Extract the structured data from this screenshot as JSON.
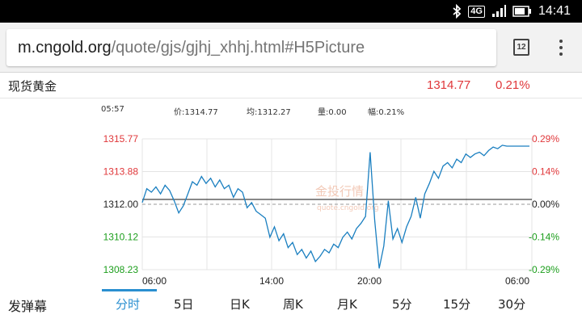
{
  "status_bar": {
    "network": "4G",
    "time": "14:41",
    "icons": [
      "bluetooth-icon",
      "signal-icon",
      "battery-icon"
    ]
  },
  "browser": {
    "url_host": "m.cngold.org",
    "url_path": "/quote/gjs/gjhj_xhhj.html#H5Picture",
    "tab_count": "12"
  },
  "quote": {
    "name": "现货黄金",
    "price": "1314.77",
    "change": "0.21%"
  },
  "info": {
    "time": "05:57",
    "price_label": "价:1314.77",
    "avg_label": "均:1312.27",
    "volume_label": "量:0.00",
    "range_label": "幅:0.21%"
  },
  "colors": {
    "up": "#e0373a",
    "down": "#1c9e1c",
    "line": "#1a7fc0",
    "accent": "#2a8fd0"
  },
  "chart_data": {
    "type": "line",
    "title": "",
    "y_left_ticks": [
      "1315.77",
      "1313.88",
      "1312.00",
      "1310.12",
      "1308.23"
    ],
    "y_right_ticks": [
      "0.29%",
      "0.14%",
      "0.00%",
      "-0.14%",
      "-0.29%"
    ],
    "x_ticks": [
      "06:00",
      "14:00",
      "20:00",
      "06:00"
    ],
    "ylim": [
      1308.23,
      1315.77
    ],
    "reference": 1312.0,
    "grid": true,
    "watermark": "金投行情 quote.cngold.org",
    "series": [
      {
        "values": [
          1312.1,
          1312.9,
          1312.7,
          1313.0,
          1312.6,
          1313.1,
          1312.8,
          1312.2,
          1311.5,
          1311.9,
          1312.6,
          1313.3,
          1313.1,
          1313.6,
          1313.2,
          1313.5,
          1313.0,
          1313.4,
          1312.9,
          1313.1,
          1312.4,
          1312.9,
          1312.7,
          1311.8,
          1312.1,
          1311.6,
          1311.4,
          1311.2,
          1310.1,
          1310.7,
          1309.9,
          1310.3,
          1309.5,
          1309.8,
          1309.1,
          1309.4,
          1308.9,
          1309.3,
          1308.7,
          1309.0,
          1309.4,
          1309.2,
          1309.7,
          1309.5,
          1310.1,
          1310.4,
          1310.0,
          1310.6,
          1310.9,
          1311.3,
          1315.0,
          1311.1,
          1308.3,
          1309.6,
          1312.2,
          1310.0,
          1310.6,
          1309.8,
          1310.7,
          1311.3,
          1312.4,
          1311.2,
          1312.6,
          1313.2,
          1313.9,
          1313.5,
          1314.2,
          1314.4,
          1314.1,
          1314.6,
          1314.4,
          1314.9,
          1314.7,
          1314.9,
          1315.0,
          1314.8,
          1315.1,
          1315.3,
          1315.2,
          1315.4,
          1315.35
        ]
      }
    ]
  },
  "bottom": {
    "danmu": "发弹幕",
    "tabs": [
      "分时",
      "5日",
      "日K",
      "周K",
      "月K",
      "5分",
      "15分",
      "30分"
    ]
  }
}
